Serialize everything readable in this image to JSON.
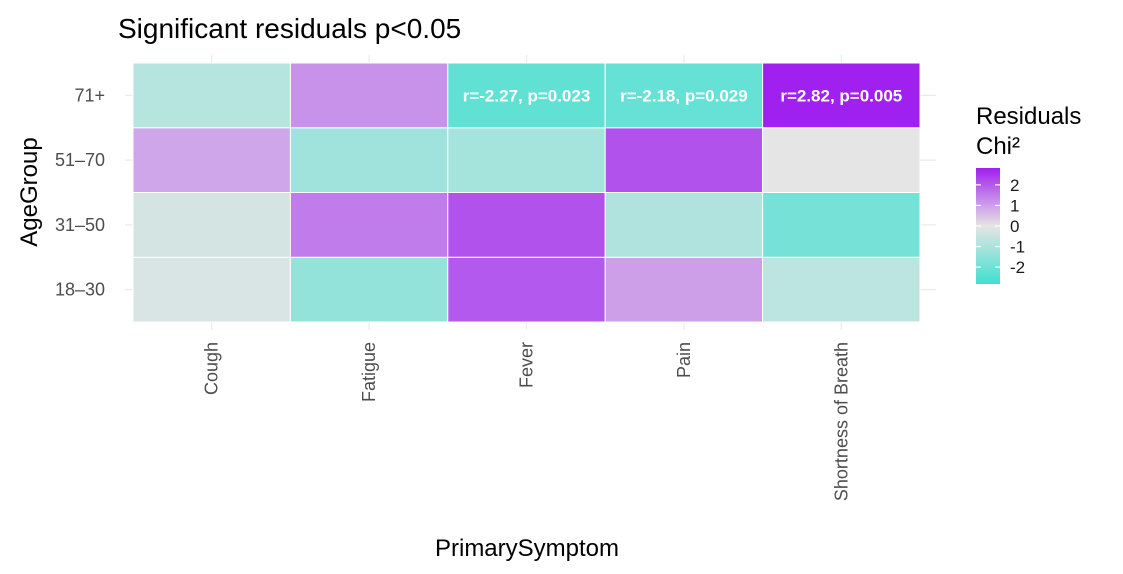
{
  "chart_data": {
    "type": "heatmap",
    "title": "Significant residuals p<0.05",
    "xlabel": "PrimarySymptom",
    "ylabel": "AgeGroup",
    "x_categories": [
      "Cough",
      "Fatigue",
      "Fever",
      "Pain",
      "Shortness of Breath"
    ],
    "y_categories": [
      "18–30",
      "31–50",
      "51–70",
      "71+"
    ],
    "values": [
      [
        -0.2,
        -1.4,
        2.0,
        1.0,
        -0.7
      ],
      [
        -0.3,
        1.5,
        2.1,
        -0.9,
        -1.9
      ],
      [
        0.9,
        -1.2,
        -1.1,
        2.1,
        0.0
      ],
      [
        -0.8,
        1.2,
        -2.27,
        -2.18,
        2.82
      ]
    ],
    "annotations": [
      {
        "x": "Fever",
        "y": "71+",
        "text": "r=-2.27, p=0.023"
      },
      {
        "x": "Pain",
        "y": "71+",
        "text": "r=-2.18, p=0.029"
      },
      {
        "x": "Shortness of Breath",
        "y": "71+",
        "text": "r=2.82, p=0.005"
      }
    ],
    "color_scale": {
      "low": "#40E0D0",
      "mid": "#E5E5E5",
      "high": "#A020F0",
      "domain": [
        -2.82,
        0,
        2.82
      ]
    },
    "legend": {
      "title": [
        "Residuals",
        "Chi²"
      ],
      "ticks": [
        2,
        1,
        0,
        -1,
        -2
      ],
      "labels": [
        "2",
        "1",
        "0",
        "-1",
        "-2"
      ],
      "position": "right"
    },
    "grid": true
  }
}
